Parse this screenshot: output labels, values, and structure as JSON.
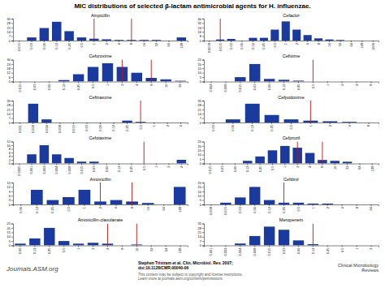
{
  "title": "MIC distributions of selected β-lactam antimicrobial agents for H. influenzae.",
  "annotations": [
    "Journals.ASM.org",
    "Stephen Tristram et al. Clin. Microbiol. Rev. 2007;\ndoi:10.1128/CMR.00040-06",
    "This content may be subject to copyright and license restrictions.\nLearn more at journals.asm.org/content/permissions",
    "Clinical Microbiology\nReviews"
  ],
  "chart_data": [
    {
      "type": "bar",
      "title": "Ampicillin",
      "categories": [
        "0.015",
        "0.03",
        "0.06",
        "0.12",
        "0.25",
        "0.5",
        "1",
        "2",
        "4",
        "8",
        "16",
        "32",
        "64",
        "128"
      ],
      "values": [
        0,
        5,
        20,
        30,
        15,
        5,
        3,
        2,
        1,
        1,
        1,
        1,
        0,
        5
      ],
      "color": "#1a3a9e",
      "ylim": [
        0,
        35
      ],
      "yticks": [
        0,
        7,
        14,
        21,
        28,
        35
      ],
      "reference_lines": {
        "x": [
          "1",
          "8"
        ],
        "color": "#cc1111"
      }
    },
    {
      "type": "bar",
      "title": "Cefaclor",
      "categories": [
        "0.0078",
        "0.015",
        "0.03",
        "0.06",
        "0.12",
        "0.25",
        "0.5",
        "1",
        "2",
        "4",
        "8",
        "16",
        "32",
        "64",
        "128",
        "1000"
      ],
      "values": [
        0,
        2,
        3,
        0,
        5,
        5,
        20,
        35,
        20,
        10,
        4,
        2,
        1,
        0,
        0,
        0
      ],
      "color": "#1a3a9e",
      "ylim": [
        0,
        40
      ],
      "yticks": [
        0,
        8,
        16,
        24,
        32,
        40
      ],
      "reference_lines": {
        "x": [
          "0.015"
        ],
        "color": "#cc1111"
      }
    },
    {
      "type": "bar",
      "title": "Cefuroxime",
      "categories": [
        "0.015",
        "0.03",
        "0.06",
        "0.12",
        "0.25",
        "0.5",
        "1",
        "2",
        "4",
        "8",
        "16",
        "32"
      ],
      "values": [
        0,
        0,
        0,
        2,
        10,
        20,
        25,
        20,
        12,
        5,
        3,
        1
      ],
      "color": "#1a3a9e",
      "ylim": [
        0,
        30
      ],
      "yticks": [
        0,
        6,
        12,
        18,
        24,
        30
      ],
      "reference_lines": {
        "x": [
          "2",
          "8"
        ],
        "color": "#cc1111"
      }
    },
    {
      "type": "bar",
      "title": "Cefixime",
      "categories": [
        "0.004",
        "0.008",
        "0.015",
        "0.03",
        "0.06",
        "0.12",
        "0.25",
        "0.5",
        "1",
        "2",
        "4",
        "8"
      ],
      "values": [
        0,
        0,
        5,
        20,
        3,
        2,
        1,
        0,
        0,
        0,
        0,
        0
      ],
      "color": "#1a3a9e",
      "ylim": [
        0,
        25
      ],
      "yticks": [
        0,
        5,
        10,
        15,
        20,
        25
      ],
      "reference_lines": {
        "x": [
          "0.5"
        ],
        "color": "#cc1111"
      }
    },
    {
      "type": "bar",
      "title": "Ceftriaxone",
      "categories": [
        "0.001",
        "0.002",
        "0.004",
        "0.008",
        "0.015",
        "0.03",
        "0.06",
        "0.12",
        "0.25",
        "0.5",
        "1",
        "2",
        "4"
      ],
      "values": [
        0,
        30,
        5,
        0,
        0,
        0,
        0,
        0,
        3,
        1,
        0,
        0,
        0
      ],
      "color": "#1a3a9e",
      "ylim": [
        0,
        35
      ],
      "yticks": [
        0,
        7,
        14,
        21,
        28,
        35
      ],
      "reference_lines": {
        "x": [
          "0.5"
        ],
        "color": "#cc1111"
      }
    },
    {
      "type": "bar",
      "title": "Cefpodoxime",
      "categories": [
        "0.03",
        "0.06",
        "0.12",
        "0.25",
        "0.5",
        "1",
        "2",
        "4",
        "8"
      ],
      "values": [
        0,
        5,
        30,
        12,
        5,
        3,
        2,
        1,
        0
      ],
      "color": "#1a3a9e",
      "ylim": [
        0,
        35
      ],
      "yticks": [
        0,
        7,
        14,
        21,
        28,
        35
      ],
      "reference_lines": {
        "x": [
          "1"
        ],
        "color": "#cc1111"
      }
    },
    {
      "type": "bar",
      "title": "Cefotaxime",
      "categories": [
        "0.0005",
        "0.001",
        "0.002",
        "0.004",
        "0.008",
        "0.015",
        "0.03",
        "0.06",
        "0.12",
        "0.25",
        "0.5",
        "1",
        "2",
        "4"
      ],
      "values": [
        0,
        5,
        10,
        5,
        3,
        1,
        1,
        0,
        0,
        0,
        0,
        0,
        0,
        2
      ],
      "color": "#1a3a9e",
      "ylim": [
        0,
        12
      ],
      "yticks": [
        0,
        2,
        4,
        6,
        8,
        10,
        12
      ],
      "reference_lines": {
        "x": [
          "0.5"
        ],
        "color": "#cc1111"
      }
    },
    {
      "type": "bar",
      "title": "Cefprozil",
      "categories": [
        "0.015",
        "0.03",
        "0.06",
        "0.12",
        "0.25",
        "0.5",
        "1",
        "2",
        "4",
        "8",
        "16",
        "32",
        "64",
        "128"
      ],
      "values": [
        0,
        0,
        0,
        3,
        8,
        15,
        20,
        18,
        12,
        4,
        3,
        2,
        0,
        0
      ],
      "color": "#1a3a9e",
      "ylim": [
        0,
        25
      ],
      "yticks": [
        0,
        5,
        10,
        15,
        20,
        25
      ],
      "reference_lines": {
        "x": [
          "2",
          "8"
        ],
        "color": "#cc1111"
      }
    },
    {
      "type": "bar",
      "title": "Amoxicillin",
      "categories": [
        "0.06",
        "0.12",
        "0.25",
        "0.5",
        "1",
        "2",
        "4",
        "8",
        "16",
        "64",
        "128"
      ],
      "values": [
        0,
        10,
        3,
        5,
        10,
        2,
        3,
        2,
        1,
        0,
        12
      ],
      "color": "#1a3a9e",
      "ylim": [
        0,
        15
      ],
      "yticks": [
        0,
        3,
        6,
        9,
        12,
        15
      ],
      "reference_lines": {
        "x": [
          "2",
          "8"
        ],
        "color": "#cc1111"
      }
    },
    {
      "type": "bar",
      "title": "Cefdinir",
      "categories": [
        "0.008",
        "0.015",
        "0.03",
        "0.06",
        "0.12",
        "0.25",
        "0.5",
        "1",
        "2",
        "4",
        "8",
        "64"
      ],
      "values": [
        0,
        2,
        8,
        20,
        5,
        2,
        2,
        1,
        1,
        0,
        0,
        0
      ],
      "color": "#1a3a9e",
      "ylim": [
        0,
        25
      ],
      "yticks": [
        0,
        5,
        10,
        15,
        20,
        25
      ],
      "reference_lines": {
        "x": [
          "0.25"
        ],
        "color": "#cc1111"
      }
    },
    {
      "type": "bar",
      "title": "Amoxicillin-clavulanate",
      "categories": [
        "0.06",
        "0.12",
        "0.25",
        "0.5",
        "1",
        "2",
        "4",
        "8",
        "16",
        "32",
        "64",
        "128"
      ],
      "values": [
        2,
        8,
        20,
        5,
        2,
        3,
        2,
        0,
        1,
        0,
        0,
        0
      ],
      "color": "#1a3a9e",
      "ylim": [
        0,
        25
      ],
      "yticks": [
        0,
        5,
        10,
        15,
        20,
        25
      ],
      "reference_lines": {
        "x": [
          "4",
          "16"
        ],
        "color": "#cc1111"
      }
    },
    {
      "type": "bar",
      "title": "Meropenem",
      "categories": [
        "0.001",
        "0.002",
        "0.004",
        "0.008",
        "0.015",
        "0.03",
        "0.06",
        "0.12",
        "0.25",
        "0.5",
        "1",
        "2"
      ],
      "values": [
        0,
        0,
        3,
        15,
        30,
        25,
        8,
        2,
        0,
        0,
        0,
        0
      ],
      "color": "#1a3a9e",
      "ylim": [
        0,
        35
      ],
      "yticks": [
        0,
        7,
        14,
        21,
        28,
        35
      ],
      "reference_lines": {
        "x": [
          "0.12"
        ],
        "color": "#cc1111"
      }
    }
  ]
}
